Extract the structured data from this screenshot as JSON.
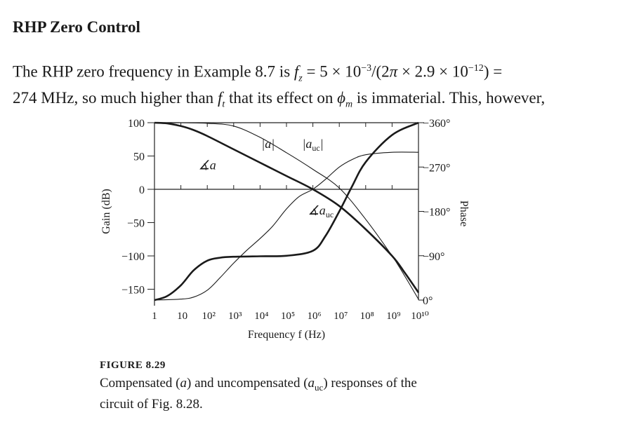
{
  "section": {
    "heading": "RHP Zero Control",
    "para_line1": "The RHP zero frequency in Example 8.7 is f_z = 5 × 10^−3/(2π × 2.9 × 10^−12) =",
    "para_line2": "274 MHz, so much higher than f_t that its effect on ϕ_m is immaterial. This, however,"
  },
  "figure": {
    "label": "FIGURE 8.29",
    "caption_line1": "Compensated (a) and uncompensated (a_uc) responses of the",
    "caption_line2": "circuit of Fig. 8.28."
  },
  "chart_data": {
    "type": "line",
    "xlabel": "Frequency f (Hz)",
    "ylabel": "Gain (dB)",
    "y2label": "Phase",
    "xscale": "log",
    "xlim": [
      1,
      10000000000
    ],
    "ylim": [
      -165,
      100
    ],
    "y2lim": [
      -360,
      0
    ],
    "x_ticks": [
      "1",
      "10",
      "10²",
      "10³",
      "10⁴",
      "10⁵",
      "10⁶",
      "10⁷",
      "10⁸",
      "10⁹",
      "10¹⁰"
    ],
    "y_ticks": [
      "100",
      "50",
      "0",
      "−50",
      "−100",
      "−150"
    ],
    "y2_ticks": [
      "0°",
      "−90°",
      "−180°",
      "−270°",
      "−360°"
    ],
    "y_tick_values": [
      100,
      50,
      0,
      -50,
      -100,
      -150
    ],
    "y2_tick_values": [
      0,
      -90,
      -180,
      -270,
      -360
    ],
    "zero_line": 0,
    "series": [
      {
        "name": "|a|",
        "axis": "gain",
        "weight": "bold",
        "x": [
          1,
          3,
          10,
          30,
          100,
          1000,
          10000,
          100000,
          1000000,
          10000000,
          100000000,
          1000000000,
          3000000000,
          10000000000
        ],
        "y": [
          100,
          99,
          95,
          89,
          80,
          60,
          40,
          20,
          0,
          -25,
          -60,
          -100,
          -125,
          -155
        ]
      },
      {
        "name": "|a_uc|",
        "axis": "gain",
        "weight": "thin",
        "x": [
          1,
          10,
          100,
          1000,
          10000,
          100000,
          1000000,
          10000000,
          100000000,
          1000000000,
          3000000000,
          10000000000
        ],
        "y": [
          100,
          100,
          99,
          95,
          78,
          55,
          30,
          2,
          -45,
          -100,
          -130,
          -165
        ]
      },
      {
        "name": "∡a",
        "axis": "phase",
        "weight": "bold",
        "x": [
          1,
          3,
          10,
          30,
          100,
          300,
          1000,
          10000,
          100000,
          1000000,
          3000000,
          10000000,
          30000000,
          100000000,
          1000000000,
          10000000000
        ],
        "y": [
          0,
          -8,
          -30,
          -60,
          -80,
          -86,
          -88,
          -89,
          -90,
          -100,
          -130,
          -180,
          -230,
          -280,
          -335,
          -360
        ]
      },
      {
        "name": "∡a_uc",
        "axis": "phase",
        "weight": "thin",
        "x": [
          1,
          10,
          30,
          100,
          300,
          1000,
          3000,
          10000,
          30000,
          100000,
          300000,
          1000000,
          3000000,
          10000000,
          30000000,
          100000000,
          1000000000,
          10000000000
        ],
        "y": [
          0,
          -2,
          -6,
          -20,
          -45,
          -75,
          -100,
          -125,
          -150,
          -185,
          -210,
          -225,
          -245,
          -270,
          -285,
          -295,
          -300,
          -300
        ]
      }
    ],
    "annotations": [
      {
        "text": "|a|",
        "x": 20000,
        "y": 62
      },
      {
        "text": "|a_uc|",
        "x": 1000000,
        "y": 62
      },
      {
        "text": "∡a",
        "x": 100,
        "y": 30
      },
      {
        "text": "∡a_uc",
        "x": 2000000,
        "y": -38
      }
    ],
    "grid": false
  }
}
